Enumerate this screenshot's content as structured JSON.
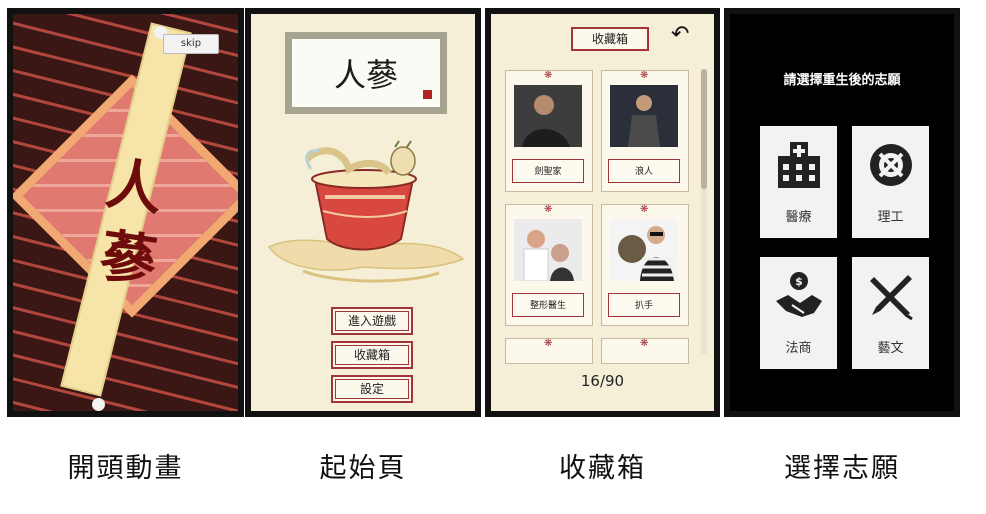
{
  "screens": {
    "intro": {
      "skip_label": "skip",
      "calligraphy_1": "人",
      "calligraphy_2": "蔘"
    },
    "start": {
      "logo_text": "人蔘",
      "buttons": [
        "進入遊戲",
        "收藏箱",
        "設定"
      ]
    },
    "collection": {
      "header": "收藏箱",
      "cards": [
        "劍聖家",
        "浪人",
        "整形醫生",
        "扒手"
      ],
      "progress": "16/90"
    },
    "choose": {
      "title": "請選擇重生後的志願",
      "options": [
        "醫療",
        "理工",
        "法商",
        "藝文"
      ]
    }
  },
  "captions": [
    "開頭動畫",
    "起始頁",
    "收藏箱",
    "選擇志願"
  ]
}
